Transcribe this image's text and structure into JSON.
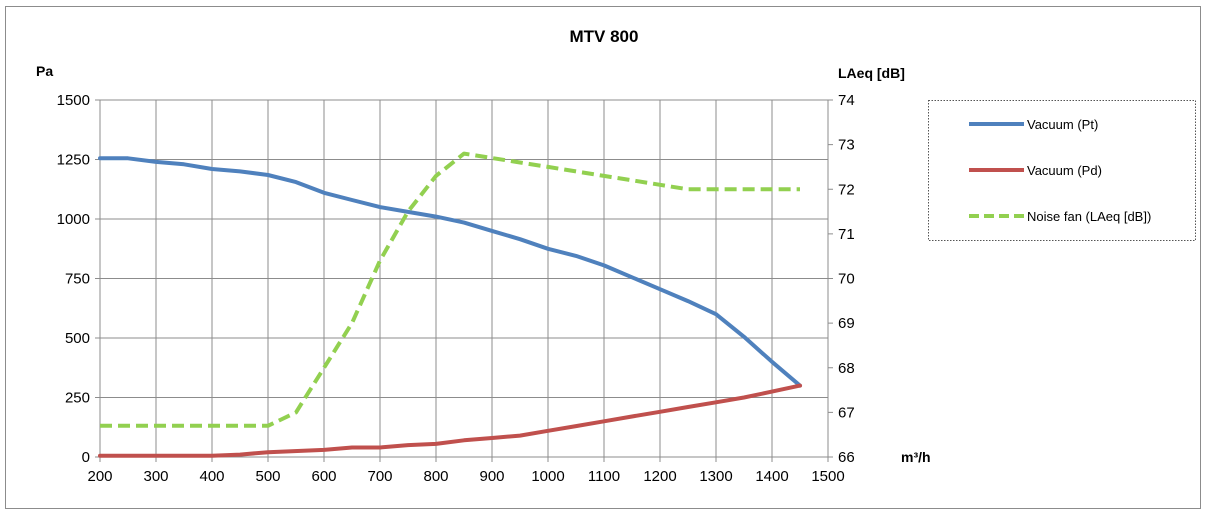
{
  "chart_data": {
    "type": "line",
    "title": "MTV 800",
    "xlabel": "m³/h",
    "ylabel_left": "Pa",
    "ylabel_right": "LAeq [dB]",
    "xlim": [
      200,
      1500
    ],
    "ylim_left": [
      0,
      1500
    ],
    "ylim_right": [
      66,
      74
    ],
    "x_ticks": [
      "200",
      "300",
      "400",
      "500",
      "600",
      "700",
      "800",
      "900",
      "1000",
      "1100",
      "1200",
      "1300",
      "1400",
      "1500"
    ],
    "y_left_ticks": [
      "0",
      "250",
      "500",
      "750",
      "1000",
      "1250",
      "1500"
    ],
    "y_right_ticks": [
      "66",
      "67",
      "68",
      "69",
      "70",
      "71",
      "72",
      "73",
      "74"
    ],
    "grid": true,
    "legend_position": "right",
    "series": [
      {
        "name": "Vacuum (Pt)",
        "axis": "left",
        "color": "#4f81bd",
        "dash": false,
        "points": [
          [
            200,
            1255
          ],
          [
            250,
            1255
          ],
          [
            300,
            1240
          ],
          [
            350,
            1230
          ],
          [
            400,
            1210
          ],
          [
            450,
            1200
          ],
          [
            500,
            1185
          ],
          [
            550,
            1155
          ],
          [
            600,
            1110
          ],
          [
            650,
            1080
          ],
          [
            700,
            1050
          ],
          [
            750,
            1030
          ],
          [
            800,
            1010
          ],
          [
            850,
            985
          ],
          [
            900,
            950
          ],
          [
            950,
            915
          ],
          [
            1000,
            875
          ],
          [
            1050,
            845
          ],
          [
            1100,
            805
          ],
          [
            1150,
            755
          ],
          [
            1200,
            705
          ],
          [
            1250,
            655
          ],
          [
            1300,
            600
          ],
          [
            1350,
            505
          ],
          [
            1400,
            400
          ],
          [
            1450,
            300
          ]
        ]
      },
      {
        "name": "Vacuum (Pd)",
        "axis": "left",
        "color": "#c0504d",
        "dash": false,
        "points": [
          [
            200,
            5
          ],
          [
            300,
            5
          ],
          [
            400,
            5
          ],
          [
            450,
            10
          ],
          [
            500,
            20
          ],
          [
            600,
            30
          ],
          [
            650,
            40
          ],
          [
            700,
            40
          ],
          [
            750,
            50
          ],
          [
            800,
            55
          ],
          [
            850,
            70
          ],
          [
            900,
            80
          ],
          [
            950,
            90
          ],
          [
            1000,
            110
          ],
          [
            1050,
            130
          ],
          [
            1100,
            150
          ],
          [
            1150,
            170
          ],
          [
            1200,
            190
          ],
          [
            1250,
            210
          ],
          [
            1300,
            230
          ],
          [
            1350,
            250
          ],
          [
            1400,
            275
          ],
          [
            1450,
            300
          ]
        ]
      },
      {
        "name": "Noise fan (LAeq [dB])",
        "axis": "right",
        "color": "#92d050",
        "dash": true,
        "points": [
          [
            200,
            66.7
          ],
          [
            250,
            66.7
          ],
          [
            300,
            66.7
          ],
          [
            350,
            66.7
          ],
          [
            400,
            66.7
          ],
          [
            450,
            66.7
          ],
          [
            500,
            66.7
          ],
          [
            550,
            67.0
          ],
          [
            600,
            68.0
          ],
          [
            650,
            69.0
          ],
          [
            700,
            70.4
          ],
          [
            750,
            71.5
          ],
          [
            800,
            72.3
          ],
          [
            850,
            72.8
          ],
          [
            900,
            72.7
          ],
          [
            950,
            72.6
          ],
          [
            1000,
            72.5
          ],
          [
            1050,
            72.4
          ],
          [
            1100,
            72.3
          ],
          [
            1150,
            72.2
          ],
          [
            1200,
            72.1
          ],
          [
            1250,
            72.0
          ],
          [
            1300,
            72.0
          ],
          [
            1350,
            72.0
          ],
          [
            1400,
            72.0
          ],
          [
            1450,
            72.0
          ]
        ]
      }
    ]
  }
}
